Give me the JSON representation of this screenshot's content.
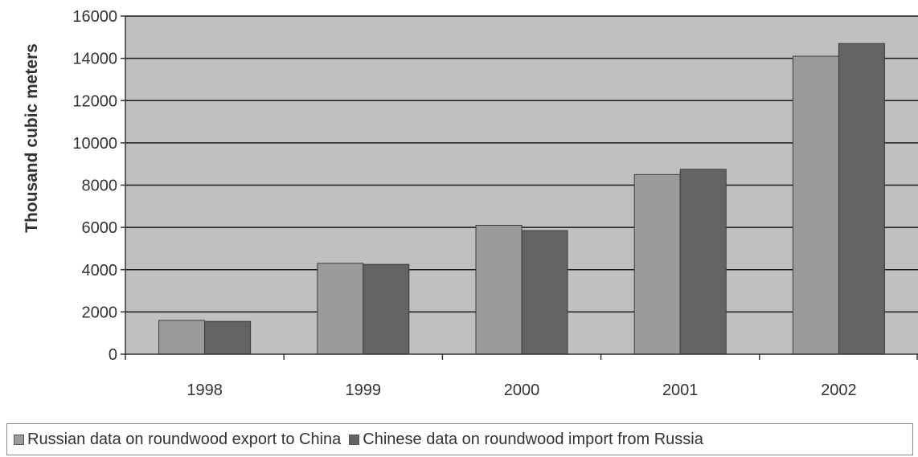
{
  "chart_data": {
    "type": "bar",
    "ylabel": "Thousand cubic meters",
    "xlabel": "",
    "ylim": [
      0,
      16000
    ],
    "yticks": [
      0,
      2000,
      4000,
      6000,
      8000,
      10000,
      12000,
      14000,
      16000
    ],
    "ytick_labels": [
      "0",
      "2000",
      "4000",
      "6000",
      "8000",
      "10000",
      "12000",
      "14000",
      "16000"
    ],
    "categories": [
      "1998",
      "1999",
      "2000",
      "2001",
      "2002"
    ],
    "series": [
      {
        "name": "Russian data on roundwood export to China",
        "color": "#9b9b9b",
        "values": [
          1600,
          4300,
          6100,
          8500,
          14100
        ]
      },
      {
        "name": "Chinese data on roundwood import from Russia",
        "color": "#636363",
        "values": [
          1550,
          4250,
          5850,
          8750,
          14700
        ]
      }
    ],
    "grid": true,
    "plot_background": "#c0c0c0",
    "legend_position": "bottom"
  }
}
